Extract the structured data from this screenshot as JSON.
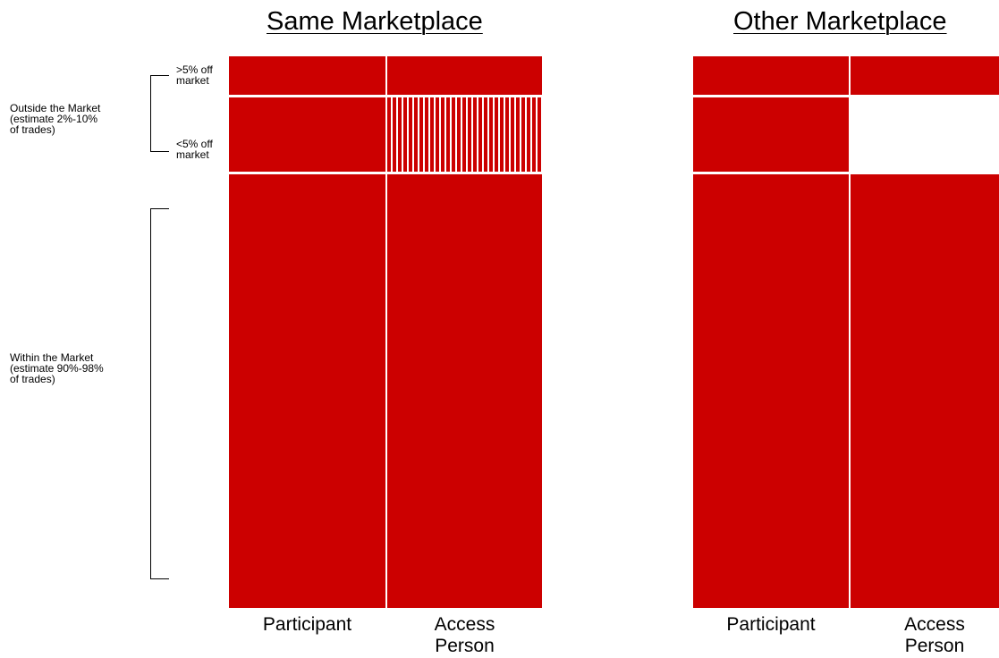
{
  "panels": {
    "same": {
      "title": "Same Marketplace",
      "columns": [
        "Participant",
        "Access\nPerson"
      ]
    },
    "other": {
      "title": "Other Marketplace",
      "columns": [
        "Participant",
        "Access\nPerson"
      ]
    }
  },
  "rows": {
    "over5": ">5% off\nmarket",
    "under5": "<5% off\nmarket"
  },
  "groups": {
    "outside": "Outside the Market\n(estimate 2%-10%\nof trades)",
    "within": "Within the Market\n(estimate 90%-98%\nof trades)"
  },
  "colors": {
    "fill": "#cc0000",
    "hatch": "vertical-stripes",
    "empty": "#ffffff"
  }
}
